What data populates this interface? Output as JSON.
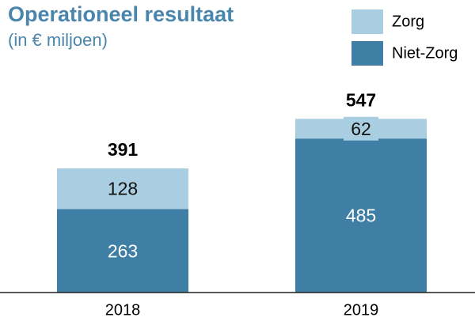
{
  "chart_data": {
    "type": "stacked-bar",
    "title": "Operationeel resultaat",
    "subtitle": "(in € miljoen)",
    "categories": [
      "2018",
      "2019"
    ],
    "series": [
      {
        "name": "Niet-Zorg",
        "color": "#3f7ea5",
        "values": [
          263,
          485
        ]
      },
      {
        "name": "Zorg",
        "color": "#a9cee1",
        "values": [
          128,
          62
        ]
      }
    ],
    "totals": [
      391,
      547
    ],
    "ylim": [
      0,
      600
    ],
    "legend": "top-right"
  }
}
